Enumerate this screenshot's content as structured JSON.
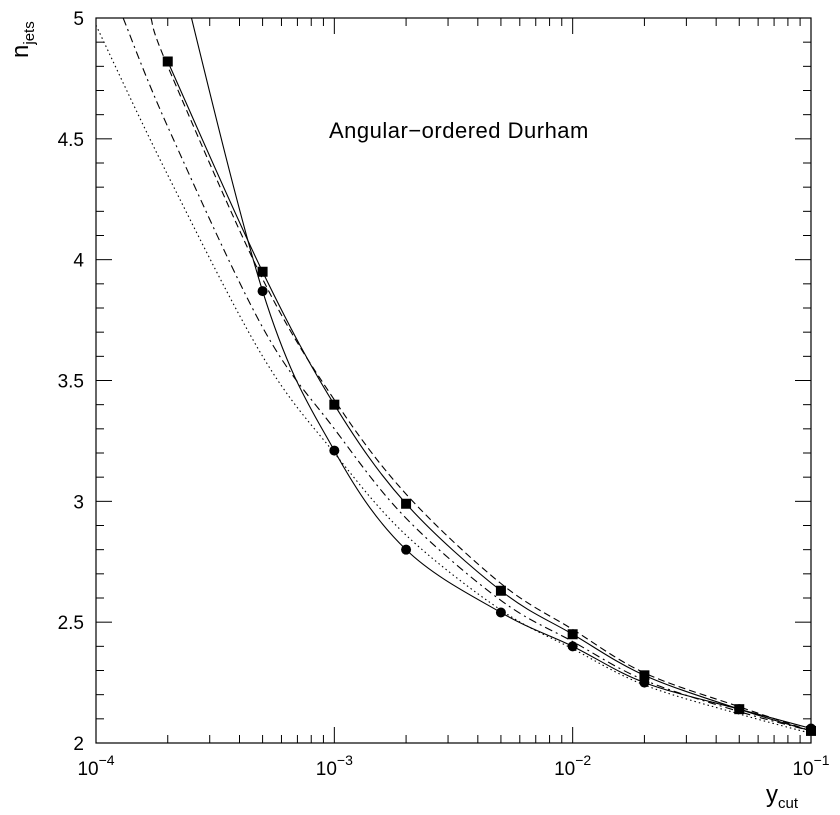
{
  "chart_data": {
    "type": "line",
    "title": "",
    "annotation": "Angular−ordered Durham",
    "xlabel": {
      "base": "y",
      "sub": "cut"
    },
    "ylabel": {
      "base": "n",
      "sub": "jets"
    },
    "xscale": "log",
    "xlim": [
      0.0001,
      0.1
    ],
    "ylim": [
      2,
      5
    ],
    "grid": false,
    "legend": "none",
    "xticks": [
      {
        "base": "10",
        "exp": "−4"
      },
      {
        "base": "10",
        "exp": "−3"
      },
      {
        "base": "10",
        "exp": "−2"
      },
      {
        "base": "10",
        "exp": "−1"
      }
    ],
    "yticks": [
      "2",
      "2.5",
      "3",
      "3.5",
      "4",
      "4.5",
      "5"
    ],
    "series": [
      {
        "style": "solid",
        "marker": "square",
        "x": [
          0.0002,
          0.0005,
          0.001,
          0.002,
          0.005,
          0.01,
          0.02,
          0.05,
          0.1
        ],
        "y": [
          4.82,
          3.95,
          3.4,
          2.99,
          2.63,
          2.45,
          2.28,
          2.14,
          2.05
        ]
      },
      {
        "style": "solid",
        "marker": "circle",
        "x": [
          0.0002,
          0.0005,
          0.001,
          0.002,
          0.005,
          0.01,
          0.02,
          0.05,
          0.1
        ],
        "y": [
          5.4,
          3.87,
          3.21,
          2.8,
          2.54,
          2.4,
          2.25,
          2.14,
          2.06
        ]
      },
      {
        "style": "dashed",
        "marker": "none",
        "x": [
          0.00017,
          0.0002,
          0.0005,
          0.001,
          0.002,
          0.005,
          0.01,
          0.02,
          0.05,
          0.1
        ],
        "y": [
          5.0,
          4.8,
          3.92,
          3.42,
          3.03,
          2.66,
          2.47,
          2.29,
          2.15,
          2.05
        ]
      },
      {
        "style": "dashdot",
        "marker": "none",
        "x": [
          0.00013,
          0.0002,
          0.0005,
          0.001,
          0.002,
          0.005,
          0.01,
          0.02,
          0.05,
          0.1
        ],
        "y": [
          5.0,
          4.55,
          3.72,
          3.3,
          2.93,
          2.59,
          2.42,
          2.26,
          2.13,
          2.05
        ]
      },
      {
        "style": "dotted",
        "marker": "none",
        "x": [
          0.0001,
          0.0002,
          0.0005,
          0.001,
          0.002,
          0.005,
          0.01,
          0.02,
          0.05,
          0.1
        ],
        "y": [
          4.97,
          4.35,
          3.6,
          3.2,
          2.86,
          2.55,
          2.39,
          2.24,
          2.12,
          2.04
        ]
      }
    ]
  }
}
